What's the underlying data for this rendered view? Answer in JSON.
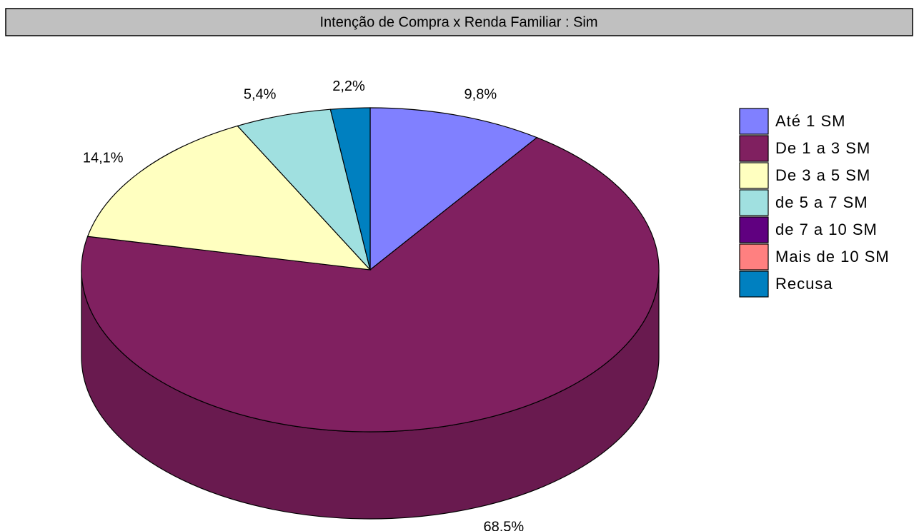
{
  "chart_data": {
    "type": "pie3d",
    "title": "Intenção de Compra x Renda Familiar : Sim",
    "categories": [
      "Até 1 SM",
      "De 1 a 3 SM",
      "De 3 a 5 SM",
      "de 5 a 7 SM",
      "de 7 a 10 SM",
      "Mais de 10 SM",
      "Recusa"
    ],
    "values": [
      9.8,
      68.5,
      14.1,
      5.4,
      0,
      0,
      2.2
    ],
    "value_labels": [
      "9,8%",
      "68,5%",
      "14,1%",
      "5,4%",
      null,
      null,
      "2,2%"
    ],
    "colors": [
      "#8080ff",
      "#802060",
      "#ffffc0",
      "#a0e0e0",
      "#600080",
      "#ff8080",
      "#0080c0"
    ],
    "legend": "right"
  }
}
